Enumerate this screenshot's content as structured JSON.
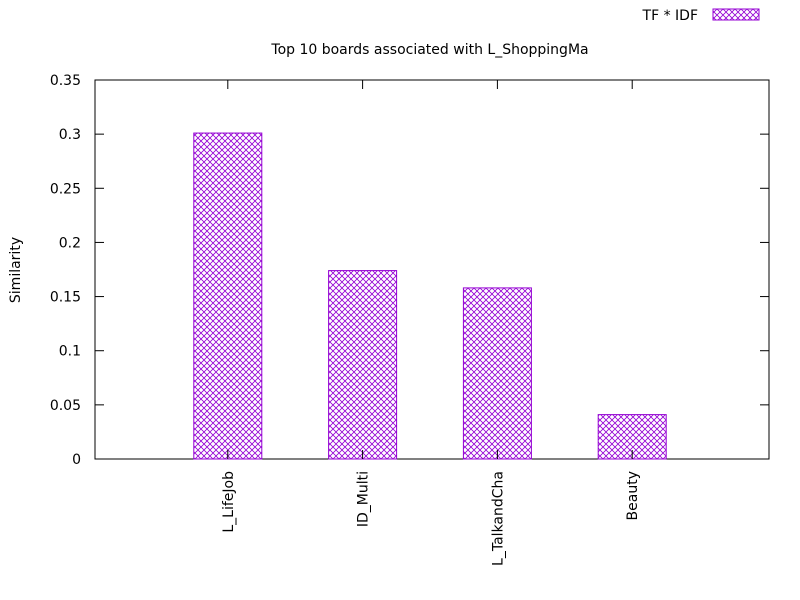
{
  "chart_data": {
    "type": "bar",
    "title": "Top 10 boards associated with L_ShoppingMa",
    "xlabel": "",
    "ylabel": "Similarity",
    "ylim": [
      0,
      0.35
    ],
    "yticks": [
      "0",
      "0.05",
      "0.1",
      "0.15",
      "0.2",
      "0.25",
      "0.3",
      "0.35"
    ],
    "categories": [
      "L_LifeJob",
      "ID_Multi",
      "L_TalkandCha",
      "Beauty"
    ],
    "series": [
      {
        "name": "TF * IDF",
        "values": [
          0.301,
          0.174,
          0.158,
          0.041
        ]
      }
    ],
    "legend_position": "top-right",
    "grid": false,
    "bar_color": "#9400d3",
    "bar_pattern": "crosshatch"
  }
}
